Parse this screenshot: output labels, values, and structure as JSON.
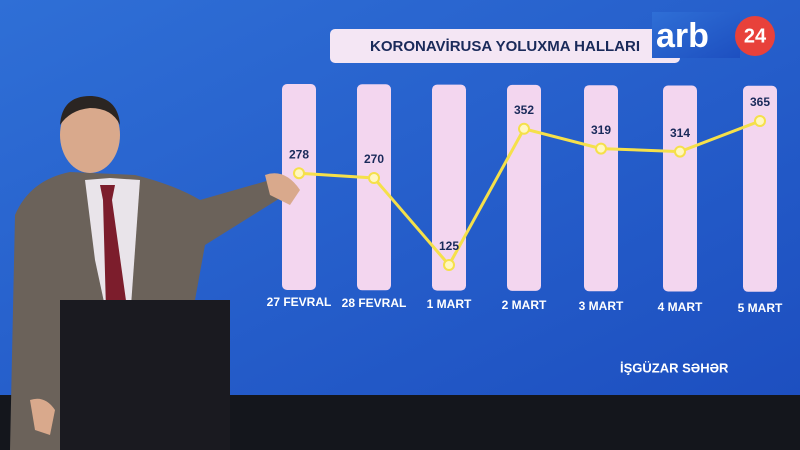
{
  "chart_data": {
    "type": "line",
    "title": "KORONAVİRUSA YOLUXMA HALLARI",
    "categories": [
      "27 FEVRAL",
      "28 FEVRAL",
      "1 MART",
      "2 MART",
      "3 MART",
      "4 MART",
      "5 MART"
    ],
    "values": [
      278,
      270,
      125,
      352,
      319,
      314,
      365
    ],
    "color": "#f5e04a"
  },
  "program": "İŞGÜZAR SƏHƏR",
  "logo": {
    "text": "arb",
    "badge": "24"
  }
}
